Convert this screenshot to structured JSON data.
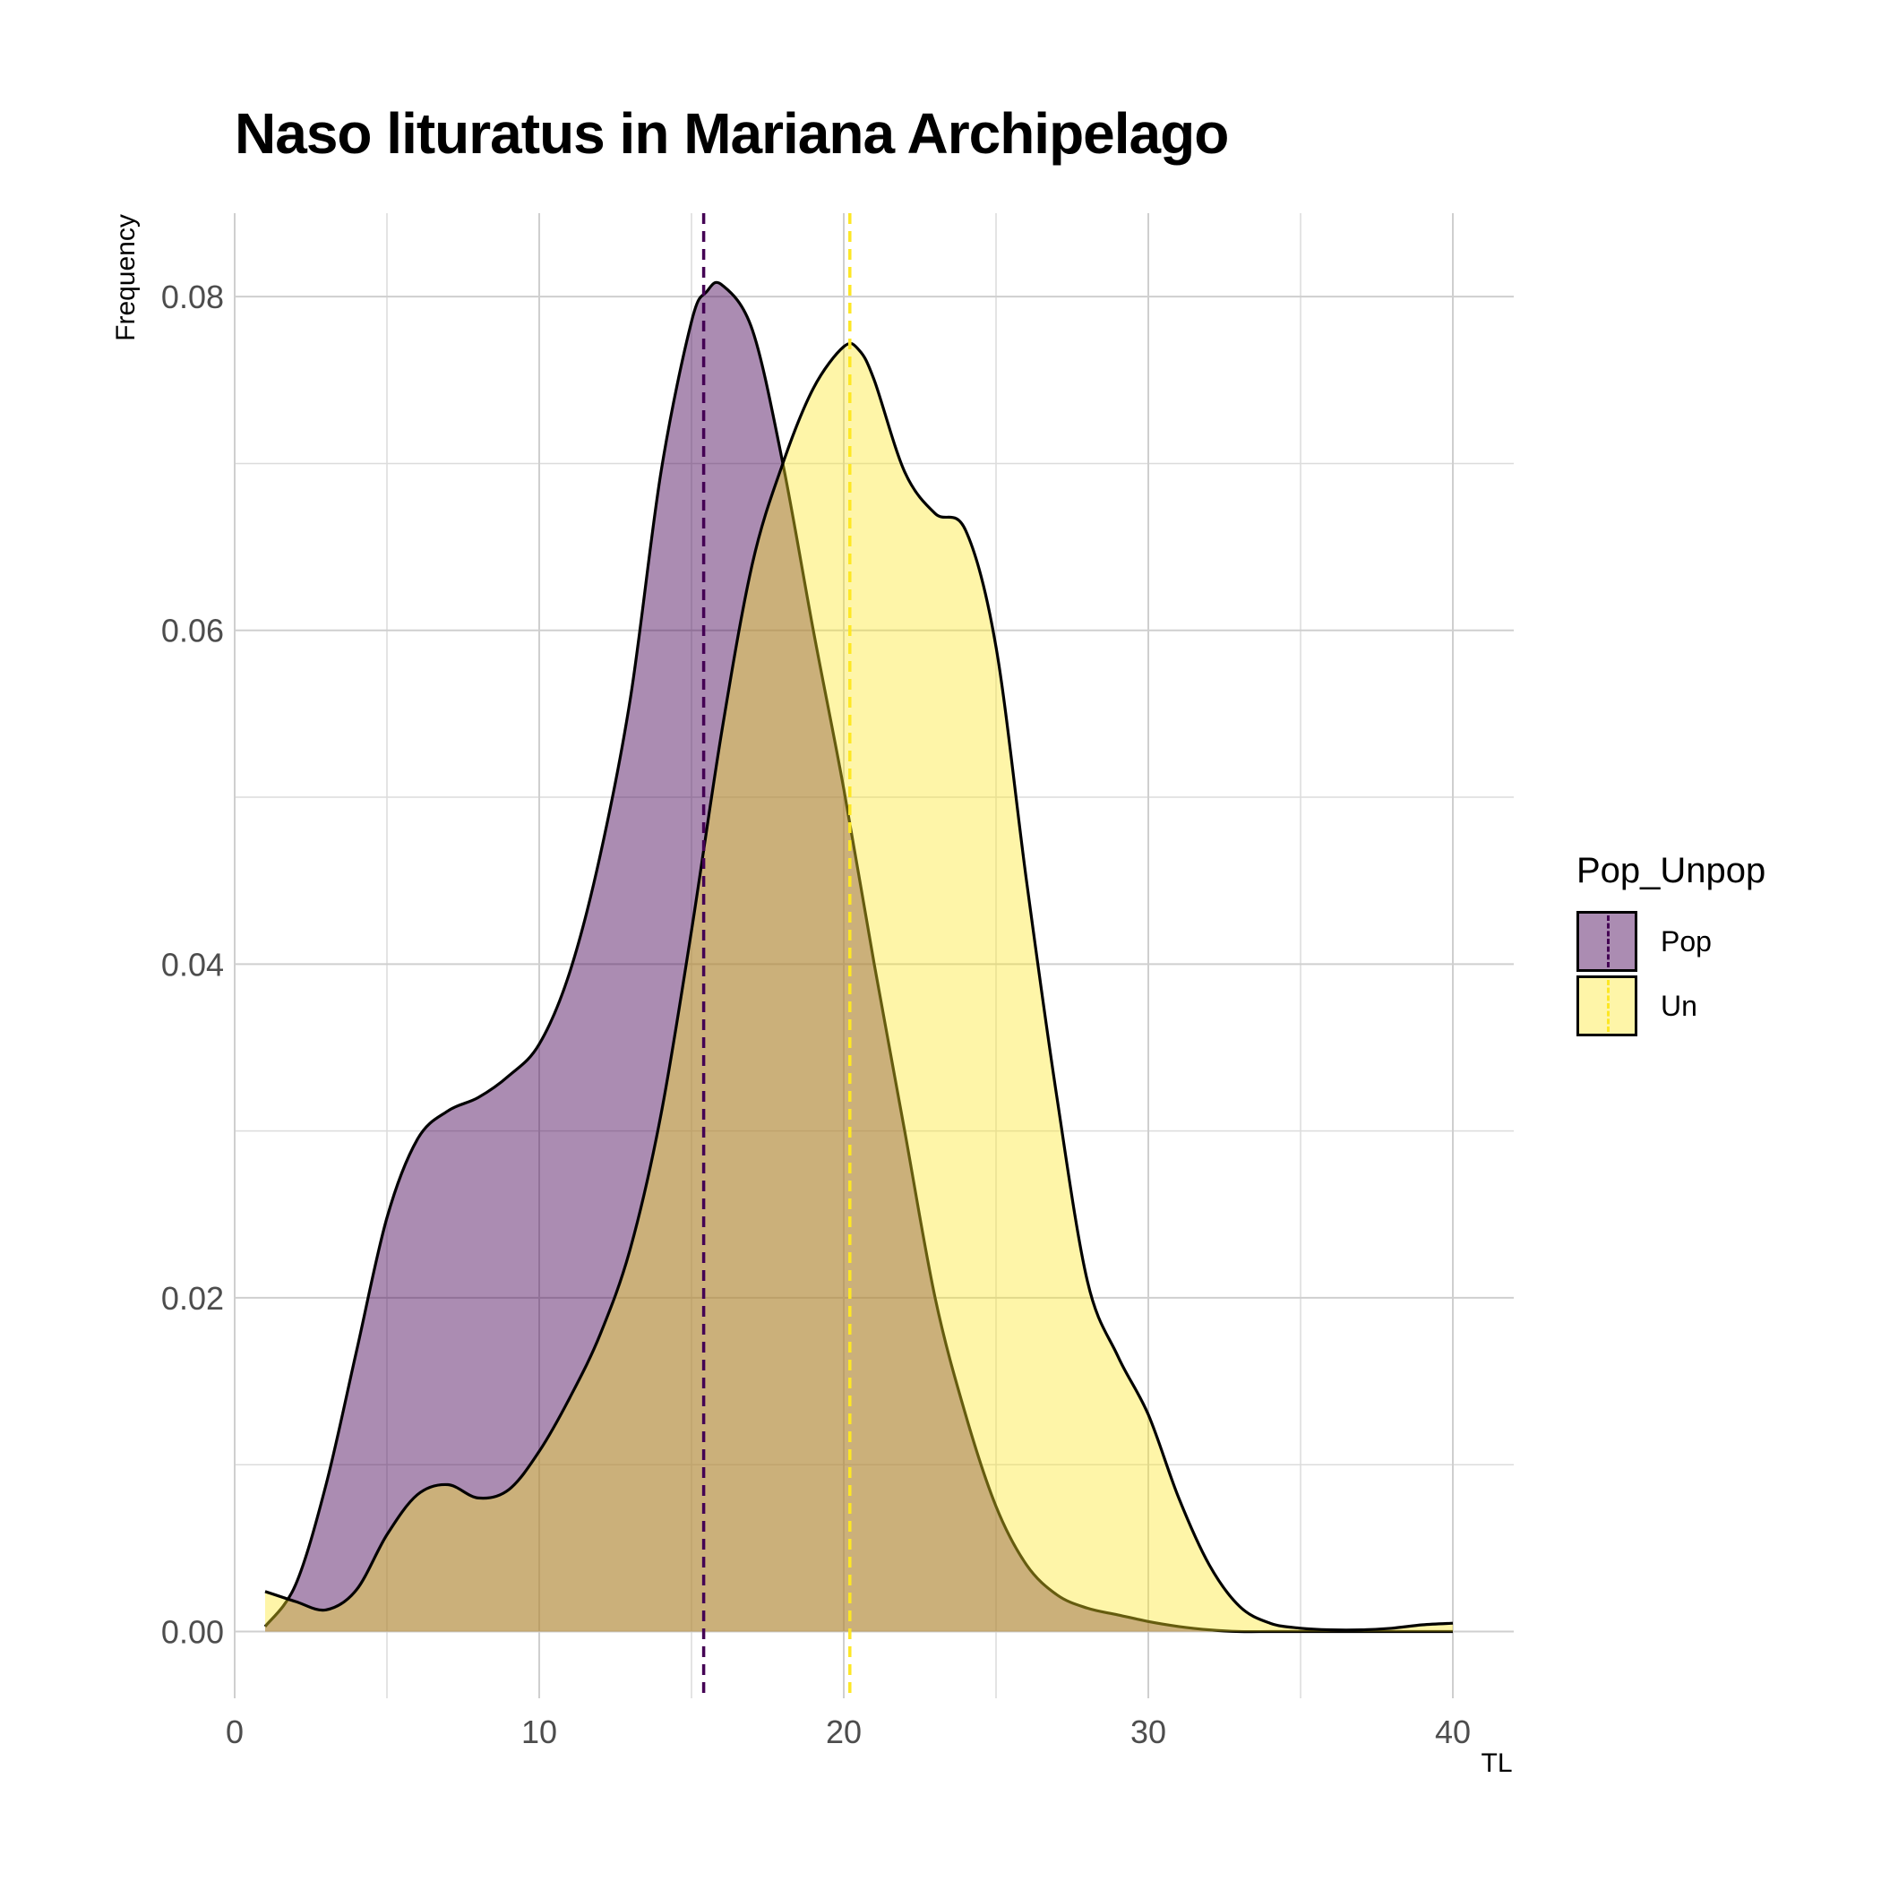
{
  "chart_data": {
    "type": "area",
    "title": "Naso lituratus in Mariana Archipelago",
    "xlabel": "TL",
    "ylabel": "Frequency",
    "xlim": [
      0,
      42
    ],
    "ylim": [
      -0.004,
      0.085
    ],
    "x_ticks": [
      0,
      10,
      20,
      30,
      40
    ],
    "x_tick_labels": [
      "0",
      "10",
      "20",
      "30",
      "40"
    ],
    "y_ticks": [
      0.0,
      0.02,
      0.04,
      0.06,
      0.08
    ],
    "y_tick_labels": [
      "0.00",
      "0.02",
      "0.04",
      "0.06",
      "0.08"
    ],
    "grid": true,
    "legend": {
      "title": "Pop_Unpop",
      "position": "right"
    },
    "series": [
      {
        "name": "Pop",
        "color": "#440154",
        "fill_opacity": 0.45,
        "mean_line": 15.4,
        "x": [
          1,
          2,
          3,
          4,
          5,
          6,
          7,
          8,
          9,
          10,
          11,
          12,
          13,
          14,
          15,
          15.5,
          16,
          17,
          18,
          19,
          20,
          21,
          22,
          23,
          24,
          25,
          26,
          27,
          28,
          29,
          30,
          31,
          32,
          33,
          34,
          35,
          36,
          37,
          38,
          39,
          40
        ],
        "values": [
          0.0003,
          0.0028,
          0.0088,
          0.0168,
          0.0248,
          0.0295,
          0.0312,
          0.032,
          0.0333,
          0.0352,
          0.0395,
          0.0465,
          0.056,
          0.0695,
          0.0785,
          0.0803,
          0.0807,
          0.078,
          0.07,
          0.06,
          0.0505,
          0.04,
          0.03,
          0.02,
          0.013,
          0.0075,
          0.004,
          0.0022,
          0.0014,
          0.001,
          0.0006,
          0.0003,
          0.0001,
          0.0,
          0.0,
          0.0,
          0.0,
          0.0,
          0.0,
          0.0,
          0.0
        ]
      },
      {
        "name": "Un",
        "color": "#FDE725",
        "fill_opacity": 0.4,
        "mean_line": 20.2,
        "x": [
          1,
          2,
          3,
          4,
          5,
          6,
          7,
          8,
          9,
          10,
          11,
          12,
          13,
          14,
          15,
          16,
          17,
          18,
          19,
          20,
          20.5,
          21,
          22,
          23,
          24,
          25,
          26,
          27,
          28,
          29,
          30,
          31,
          32,
          33,
          34,
          35,
          36,
          37,
          38,
          39,
          40
        ],
        "values": [
          0.0024,
          0.0018,
          0.0013,
          0.0025,
          0.0058,
          0.0082,
          0.0088,
          0.008,
          0.0085,
          0.0108,
          0.014,
          0.0178,
          0.023,
          0.031,
          0.042,
          0.054,
          0.064,
          0.07,
          0.0745,
          0.077,
          0.0768,
          0.075,
          0.0695,
          0.067,
          0.066,
          0.059,
          0.045,
          0.032,
          0.021,
          0.0165,
          0.013,
          0.008,
          0.004,
          0.0015,
          0.0005,
          0.0002,
          0.0001,
          0.0001,
          0.0002,
          0.0004,
          0.0005
        ]
      }
    ]
  }
}
